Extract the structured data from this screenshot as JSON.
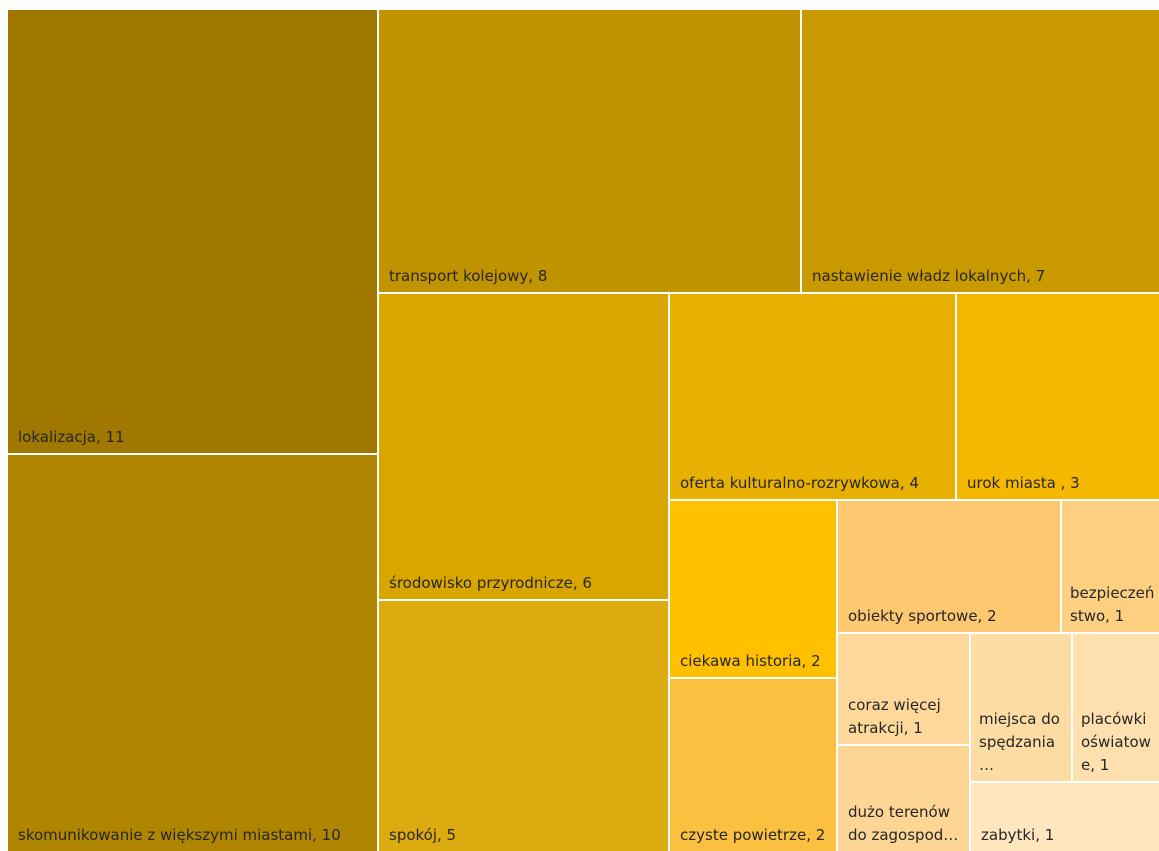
{
  "chart_data": {
    "type": "treemap",
    "categories": [
      "lokalizacja, 11",
      "skomunikowanie z większymi miastami, 10",
      "transport kolejowy, 8",
      "nastawienie władz lokalnych, 7",
      "środowisko przyrodnicze, 6",
      "spokój, 5",
      "oferta kulturalno-rozrywkowa, 4",
      "urok miasta , 3",
      "ciekawa historia, 2",
      "czyste powietrze, 2",
      "obiekty sportowe, 2",
      "bezpieczeństwo, 1",
      "coraz więcej atrakcji, 1",
      "dużo terenów do zagospod…",
      "miejsca do spędzania…",
      "placówki oświatowe, 1",
      "zabytki, 1"
    ],
    "values": [
      11,
      10,
      8,
      7,
      6,
      5,
      4,
      3,
      2,
      2,
      2,
      1,
      1,
      1,
      1,
      1,
      1
    ],
    "colors": [
      "#a07800",
      "#b08600",
      "#c09300",
      "#c99a00",
      "#d9a600",
      "#dcab10",
      "#e8b000",
      "#f5b800",
      "#ffc000",
      "#fcc040",
      "#fdc870",
      "#fdcf80",
      "#fdd89a",
      "#fdd595",
      "#fddca4",
      "#fde0ae",
      "#ffe6bf"
    ]
  }
}
